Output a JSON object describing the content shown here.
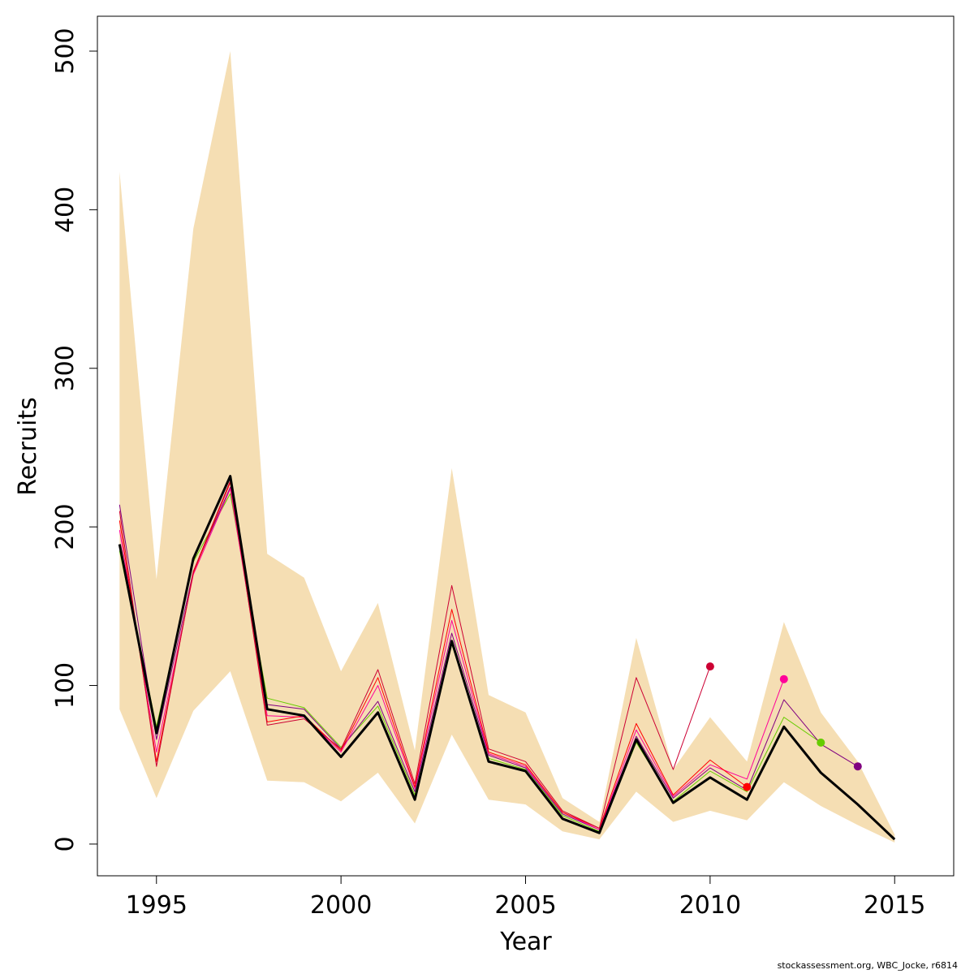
{
  "chart_data": {
    "type": "line",
    "xlabel": "Year",
    "ylabel": "Recruits",
    "xlim": [
      1993.4,
      2016.6
    ],
    "ylim": [
      -20,
      522
    ],
    "x_ticks": [
      1995,
      2000,
      2005,
      2010,
      2015
    ],
    "y_ticks": [
      0,
      100,
      200,
      300,
      400,
      500
    ],
    "grid": false,
    "band": {
      "color": "#F5DEB3",
      "x": [
        1994,
        1995,
        1996,
        1997,
        1998,
        1999,
        2000,
        2001,
        2002,
        2003,
        2004,
        2005,
        2006,
        2007,
        2008,
        2009,
        2010,
        2011,
        2012,
        2013,
        2014,
        2015
      ],
      "upper": [
        424,
        167,
        388,
        500,
        183,
        168,
        109,
        152,
        59,
        237,
        94,
        83,
        29,
        14,
        130,
        47,
        80,
        52,
        140,
        83,
        52,
        6
      ],
      "lower": [
        85,
        29,
        84,
        109,
        40,
        39,
        27,
        45,
        13,
        69,
        28,
        25,
        8,
        3,
        33,
        14,
        21,
        15,
        39,
        24,
        12,
        1
      ]
    },
    "series": [
      {
        "color": "#000000",
        "width": 3,
        "x": [
          1994,
          1995,
          1996,
          1997,
          1998,
          1999,
          2000,
          2001,
          2002,
          2003,
          2004,
          2005,
          2006,
          2007,
          2008,
          2009,
          2010,
          2011,
          2012,
          2013,
          2014,
          2015
        ],
        "values": [
          189,
          70,
          180,
          232,
          85,
          81,
          55,
          83,
          28,
          128,
          52,
          46,
          16,
          7,
          66,
          26,
          42,
          28,
          74,
          45,
          25,
          3
        ]
      },
      {
        "color": "#66CC00",
        "width": 1,
        "x": [
          1994,
          1995,
          1996,
          1997,
          1998,
          1999,
          2000,
          2001,
          2002,
          2003,
          2004,
          2005,
          2006,
          2007,
          2008,
          2009,
          2010,
          2011,
          2012,
          2013
        ],
        "values": [
          185,
          74,
          178,
          221,
          92,
          86,
          61,
          87,
          31,
          126,
          54,
          47,
          18,
          8,
          64,
          27,
          46,
          33,
          80,
          64
        ],
        "end_marker": true
      },
      {
        "color": "#800080",
        "width": 1,
        "x": [
          1994,
          1995,
          1996,
          1997,
          1998,
          1999,
          2000,
          2001,
          2002,
          2003,
          2004,
          2005,
          2006,
          2007,
          2008,
          2009,
          2010,
          2011,
          2012,
          2013,
          2014
        ],
        "values": [
          214,
          66,
          172,
          225,
          88,
          85,
          60,
          90,
          33,
          133,
          56,
          48,
          19,
          9,
          68,
          29,
          48,
          34,
          91,
          63,
          49
        ],
        "end_marker": true
      },
      {
        "color": "#FF0099",
        "width": 1,
        "x": [
          1994,
          1995,
          1996,
          1997,
          1998,
          1999,
          2000,
          2001,
          2002,
          2003,
          2004,
          2005,
          2006,
          2007,
          2008,
          2009,
          2010,
          2011,
          2012
        ],
        "values": [
          198,
          58,
          170,
          224,
          81,
          80,
          58,
          100,
          35,
          141,
          57,
          49,
          20,
          9,
          72,
          30,
          50,
          41,
          104
        ],
        "end_marker": true
      },
      {
        "color": "#FF0000",
        "width": 1,
        "x": [
          1994,
          1995,
          1996,
          1997,
          1998,
          1999,
          2000,
          2001,
          2002,
          2003,
          2004,
          2005,
          2006,
          2007,
          2008,
          2009,
          2010,
          2011
        ],
        "values": [
          204,
          52,
          171,
          228,
          77,
          81,
          59,
          105,
          36,
          148,
          58,
          50,
          20,
          10,
          76,
          31,
          53,
          36
        ],
        "end_marker": true
      },
      {
        "color": "#CC0033",
        "width": 1,
        "x": [
          1994,
          1995,
          1996,
          1997,
          1998,
          1999,
          2000,
          2001,
          2002,
          2003,
          2004,
          2005,
          2006,
          2007,
          2008,
          2009,
          2010
        ],
        "values": [
          210,
          49,
          172,
          229,
          75,
          79,
          60,
          110,
          38,
          163,
          60,
          52,
          21,
          10,
          105,
          47,
          112
        ],
        "end_marker": true
      }
    ]
  },
  "footer": "stockassessment.org, WBC_Jocke, r6814"
}
